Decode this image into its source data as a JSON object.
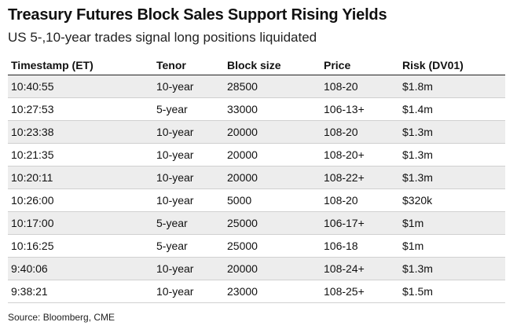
{
  "title": "Treasury Futures Block Sales Support Rising Yields",
  "subtitle": "US 5-,10-year trades signal long positions liquidated",
  "source": "Source: Bloomberg, CME",
  "colors": {
    "stripe": "#ededed",
    "text": "#111111"
  },
  "chart_data": {
    "type": "table",
    "title": "Treasury Futures Block Sales Support Rising Yields",
    "subtitle": "US 5-,10-year trades signal long positions liquidated",
    "columns": [
      "Timestamp (ET)",
      "Tenor",
      "Block size",
      "Price",
      "Risk (DV01)"
    ],
    "rows": [
      [
        "10:40:55",
        "10-year",
        "28500",
        "108-20",
        "$1.8m"
      ],
      [
        "10:27:53",
        "5-year",
        "33000",
        "106-13+",
        "$1.4m"
      ],
      [
        "10:23:38",
        "10-year",
        "20000",
        "108-20",
        "$1.3m"
      ],
      [
        "10:21:35",
        "10-year",
        "20000",
        "108-20+",
        "$1.3m"
      ],
      [
        "10:20:11",
        "10-year",
        "20000",
        "108-22+",
        "$1.3m"
      ],
      [
        "10:26:00",
        "10-year",
        "5000",
        "108-20",
        "$320k"
      ],
      [
        "10:17:00",
        "5-year",
        "25000",
        "106-17+",
        "$1m"
      ],
      [
        "10:16:25",
        "5-year",
        "25000",
        "106-18",
        "$1m"
      ],
      [
        "9:40:06",
        "10-year",
        "20000",
        "108-24+",
        "$1.3m"
      ],
      [
        "9:38:21",
        "10-year",
        "23000",
        "108-25+",
        "$1.5m"
      ]
    ],
    "source": "Source: Bloomberg, CME"
  }
}
